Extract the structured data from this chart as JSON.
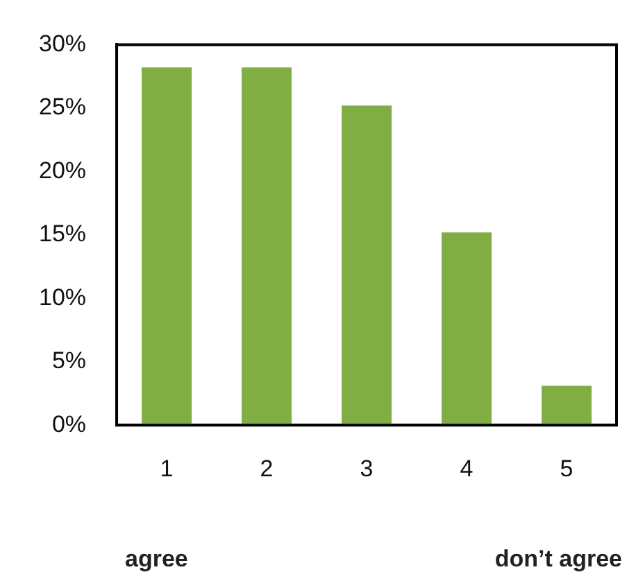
{
  "chart_data": {
    "type": "bar",
    "categories": [
      "1",
      "2",
      "3",
      "4",
      "5"
    ],
    "values": [
      28.2,
      28.2,
      25.2,
      15.2,
      3.1
    ],
    "color": "#81ad45",
    "ylim": [
      0,
      30
    ],
    "yticks": [
      {
        "value": 0,
        "label": "0%"
      },
      {
        "value": 5,
        "label": "5%"
      },
      {
        "value": 10,
        "label": "10%"
      },
      {
        "value": 15,
        "label": "15%"
      },
      {
        "value": 20,
        "label": "20%"
      },
      {
        "value": 25,
        "label": "25%"
      },
      {
        "value": 30,
        "label": "30%"
      }
    ],
    "grid": false,
    "legend": false,
    "annotations": [
      "agree",
      "don’t agree"
    ]
  }
}
